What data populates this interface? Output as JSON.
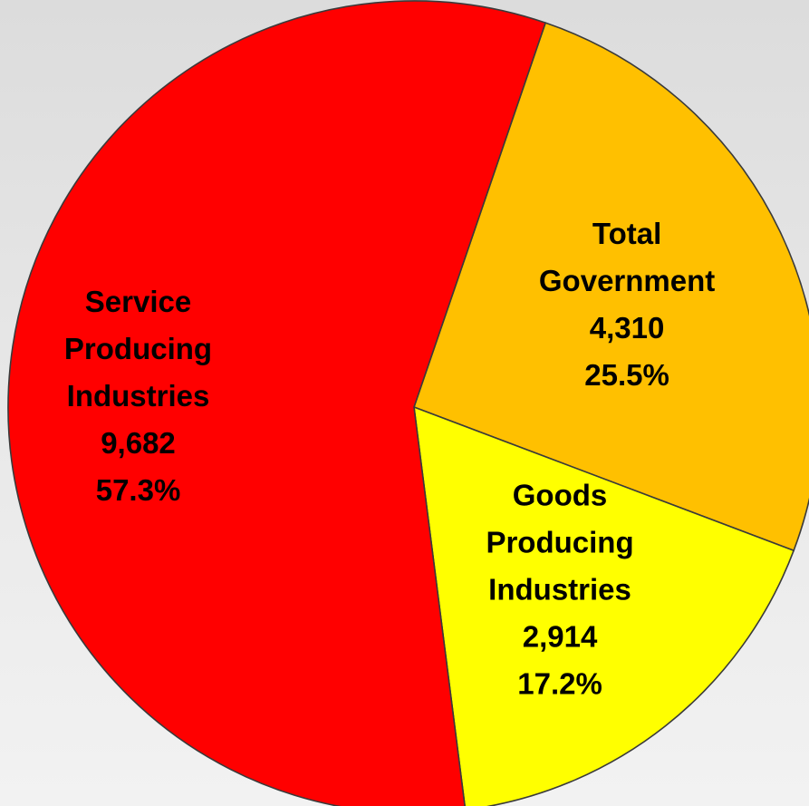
{
  "chart_data": {
    "type": "pie",
    "title": "",
    "legend": "none",
    "units": "",
    "slices": [
      {
        "label_lines": [
          "Total",
          "Government"
        ],
        "value": 4310,
        "value_label": "4,310",
        "percent": 25.5,
        "percent_label": "25.5%",
        "color": "#FFC000"
      },
      {
        "label_lines": [
          "Goods",
          "Producing",
          "Industries"
        ],
        "value": 2914,
        "value_label": "2,914",
        "percent": 17.2,
        "percent_label": "17.2%",
        "color": "#FFFF00"
      },
      {
        "label_lines": [
          "Service",
          "Producing",
          "Industries"
        ],
        "value": 9682,
        "value_label": "9,682",
        "percent": 57.3,
        "percent_label": "57.3%",
        "color": "#FF0000"
      }
    ]
  }
}
